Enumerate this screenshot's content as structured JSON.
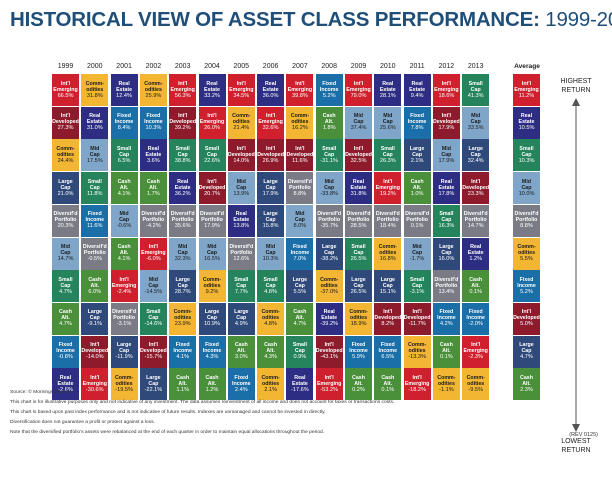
{
  "title": {
    "main": "HISTORICAL VIEW OF ASSET CLASS PERFORMANCE:",
    "years": "1999-2013"
  },
  "chart_data": {
    "type": "table",
    "years": [
      "1999",
      "2000",
      "2001",
      "2002",
      "2003",
      "2004",
      "2005",
      "2006",
      "2007",
      "2008",
      "2009",
      "2010",
      "2011",
      "2012",
      "2013"
    ],
    "average_label": "Average",
    "highest_label": "HIGHEST RETURN",
    "lowest_label": "LOWEST RETURN",
    "colors": {
      "Intl Emerging": "#d0202e",
      "Intl Developed": "#8e1b2c",
      "Real Estate": "#2d2e83",
      "Commodities": "#f2b632",
      "Mid Cap": "#7fa6c9",
      "Small Cap": "#25845b",
      "Large Cap": "#2f4a7a",
      "Diversified Portfolio": "#7b7b86",
      "Fixed Income": "#1a6fa8",
      "Cash Alt.": "#4a8f3a"
    },
    "columns": [
      [
        [
          "Int'l\nEmerging",
          "66.5%"
        ],
        [
          "Int'l\nDeveloped",
          "27.3%"
        ],
        [
          "Comm-\nodities",
          "24.4%"
        ],
        [
          "Large\nCap",
          "21.0%"
        ],
        [
          "Diversif'd\nPortfolio",
          "20.3%"
        ],
        [
          "Mid\nCap",
          "14.7%"
        ],
        [
          "Small\nCap",
          "4.7%"
        ],
        [
          "Cash\nAlt.",
          "4.7%"
        ],
        [
          "Fixed\nIncome",
          "-0.8%"
        ],
        [
          "Real\nEstate",
          "-2.6%"
        ]
      ],
      [
        [
          "Comm-\nodities",
          "31.8%"
        ],
        [
          "Real\nEstate",
          "31.0%"
        ],
        [
          "Mid\nCap",
          "17.5%"
        ],
        [
          "Small\nCap",
          "11.8%"
        ],
        [
          "Fixed\nIncome",
          "11.6%"
        ],
        [
          "Diversif'd\nPortfolio",
          "-0.5%"
        ],
        [
          "Cash\nAlt.",
          "6.0%"
        ],
        [
          "Large\nCap",
          "-9.1%"
        ],
        [
          "Int'l\nDeveloped",
          "-14.0%"
        ],
        [
          "Int'l\nEmerging",
          "-30.6%"
        ]
      ],
      [
        [
          "Real\nEstate",
          "12.4%"
        ],
        [
          "Fixed\nIncome",
          "8.4%"
        ],
        [
          "Small\nCap",
          "6.5%"
        ],
        [
          "Cash\nAlt.",
          "4.1%"
        ],
        [
          "Mid\nCap",
          "-0.6%"
        ],
        [
          "Cash\nAlt.",
          "4.1%"
        ],
        [
          "Int'l\nEmerging",
          "-2.4%"
        ],
        [
          "Diversif'd\nPortfolio",
          "-3.1%"
        ],
        [
          "Large\nCap",
          "-11.9%"
        ],
        [
          "Comm-\nodities",
          "-19.5%"
        ]
      ],
      [
        [
          "Comm-\nodities",
          "25.9%"
        ],
        [
          "Fixed\nIncome",
          "10.3%"
        ],
        [
          "Real\nEstate",
          "3.6%"
        ],
        [
          "Cash\nAlt.",
          "1.7%"
        ],
        [
          "Diversif'd\nPortfolio",
          "-4.2%"
        ],
        [
          "Int'l\nEmerging",
          "-6.0%"
        ],
        [
          "Mid\nCap",
          "-14.5%"
        ],
        [
          "Small\nCap",
          "-14.6%"
        ],
        [
          "Int'l\nDeveloped",
          "-15.7%"
        ],
        [
          "Large\nCap",
          "-22.1%"
        ]
      ],
      [
        [
          "Int'l\nEmerging",
          "56.3%"
        ],
        [
          "Int'l\nDeveloped",
          "39.2%"
        ],
        [
          "Small\nCap",
          "38.8%"
        ],
        [
          "Real\nEstate",
          "36.2%"
        ],
        [
          "Diversif'd\nPortfolio",
          "35.6%"
        ],
        [
          "Mid\nCap",
          "32.3%"
        ],
        [
          "Large\nCap",
          "28.7%"
        ],
        [
          "Comm-\nodities",
          "23.9%"
        ],
        [
          "Fixed\nIncome",
          "4.1%"
        ],
        [
          "Cash\nAlt.",
          "1.1%"
        ]
      ],
      [
        [
          "Real\nEstate",
          "33.2%"
        ],
        [
          "Int'l\nEmerging",
          "26.0%"
        ],
        [
          "Small\nCap",
          "22.6%"
        ],
        [
          "Int'l\nDeveloped",
          "20.7%"
        ],
        [
          "Diversif'd\nPortfolio",
          "17.9%"
        ],
        [
          "Mid\nCap",
          "16.5%"
        ],
        [
          "Comm-\nodities",
          "9.2%"
        ],
        [
          "Large\nCap",
          "10.9%"
        ],
        [
          "Fixed\nIncome",
          "4.3%"
        ],
        [
          "Cash\nAlt.",
          "1.2%"
        ]
      ],
      [
        [
          "Int'l\nEmerging",
          "34.5%"
        ],
        [
          "Comm-\nodities",
          "21.4%"
        ],
        [
          "Int'l\nDeveloped",
          "14.0%"
        ],
        [
          "Mid\nCap",
          "13.9%"
        ],
        [
          "Real\nEstate",
          "13.8%"
        ],
        [
          "Diversif'd\nPortfolio",
          "12.6%"
        ],
        [
          "Small\nCap",
          "7.7%"
        ],
        [
          "Large\nCap",
          "4.9%"
        ],
        [
          "Cash\nAlt.",
          "3.0%"
        ],
        [
          "Fixed\nIncome",
          "2.4%"
        ]
      ],
      [
        [
          "Real\nEstate",
          "36.0%"
        ],
        [
          "Int'l\nEmerging",
          "32.6%"
        ],
        [
          "Int'l\nDeveloped",
          "26.9%"
        ],
        [
          "Large\nCap",
          "17.9%"
        ],
        [
          "Large\nCap",
          "15.8%"
        ],
        [
          "Mid\nCap",
          "10.3%"
        ],
        [
          "Small\nCap",
          "4.8%"
        ],
        [
          "Comm-\nodities",
          "4.8%"
        ],
        [
          "Cash\nAlt.",
          "4.3%"
        ],
        [
          "Comm-\nodities",
          "2.1%"
        ]
      ],
      [
        [
          "Int'l\nEmerging",
          "39.8%"
        ],
        [
          "Comm-\nodities",
          "16.2%"
        ],
        [
          "Int'l\nDeveloped",
          "11.6%"
        ],
        [
          "Diversif'd\nPortfolio",
          "8.8%"
        ],
        [
          "Mid\nCap",
          "8.0%"
        ],
        [
          "Fixed\nIncome",
          "7.0%"
        ],
        [
          "Large\nCap",
          "5.5%"
        ],
        [
          "Cash\nAlt.",
          "4.7%"
        ],
        [
          "Small\nCap",
          "0.9%"
        ],
        [
          "Real\nEstate",
          "-17.6%"
        ]
      ],
      [
        [
          "Fixed\nIncome",
          "5.2%"
        ],
        [
          "Cash\nAlt.",
          "1.8%"
        ],
        [
          "Small\nCap",
          "-31.1%"
        ],
        [
          "Mid\nCap",
          "-33.8%"
        ],
        [
          "Diversif'd\nPortfolio",
          "-35.7%"
        ],
        [
          "Large\nCap",
          "-38.2%"
        ],
        [
          "Comm-\nodities",
          "-37.0%"
        ],
        [
          "Real\nEstate",
          "-39.2%"
        ],
        [
          "Int'l\nDeveloped",
          "-43.1%"
        ],
        [
          "Int'l\nEmerging",
          "-53.2%"
        ]
      ],
      [
        [
          "Int'l\nEmerging",
          "79.0%"
        ],
        [
          "Mid\nCap",
          "37.4%"
        ],
        [
          "Int'l\nDeveloped",
          "32.5%"
        ],
        [
          "Real\nEstate",
          "31.8%"
        ],
        [
          "Diversif'd\nPortfolio",
          "28.5%"
        ],
        [
          "Small\nCap",
          "26.5%"
        ],
        [
          "Large\nCap",
          "26.5%"
        ],
        [
          "Comm-\nodities",
          "18.9%"
        ],
        [
          "Fixed\nIncome",
          "5.9%"
        ],
        [
          "Cash\nAlt.",
          "0.2%"
        ]
      ],
      [
        [
          "Real\nEstate",
          "28.1%"
        ],
        [
          "Mid\nCap",
          "25.6%"
        ],
        [
          "Small\nCap",
          "26.3%"
        ],
        [
          "Int'l\nEmerging",
          "19.2%"
        ],
        [
          "Diversif'd\nPortfolio",
          "18.4%"
        ],
        [
          "Comm-\nodities",
          "16.8%"
        ],
        [
          "Large\nCap",
          "15.1%"
        ],
        [
          "Int'l\nDeveloped",
          "8.2%"
        ],
        [
          "Fixed\nIncome",
          "6.5%"
        ],
        [
          "Cash\nAlt.",
          "0.1%"
        ]
      ],
      [
        [
          "Real\nEstate",
          "9.4%"
        ],
        [
          "Fixed\nIncome",
          "7.8%"
        ],
        [
          "Large\nCap",
          "2.1%"
        ],
        [
          "Cash\nAlt.",
          "1.0%"
        ],
        [
          "Diversif'd\nPortfolio",
          "0.1%"
        ],
        [
          "Mid\nCap",
          "-1.7%"
        ],
        [
          "Small\nCap",
          "-3.1%"
        ],
        [
          "Int'l\nDeveloped",
          "-11.7%"
        ],
        [
          "Comm-\nodities",
          "-13.3%"
        ],
        [
          "Int'l\nEmerging",
          "-18.2%"
        ]
      ],
      [
        [
          "Int'l\nEmerging",
          "18.6%"
        ],
        [
          "Int'l\nDeveloped",
          "17.9%"
        ],
        [
          "Mid\nCap",
          "17.9%"
        ],
        [
          "Real\nEstate",
          "17.8%"
        ],
        [
          "Small\nCap",
          "16.3%"
        ],
        [
          "Large\nCap",
          "16.0%"
        ],
        [
          "Diversif'd\nPortfolio",
          "13.4%"
        ],
        [
          "Fixed\nIncome",
          "4.2%"
        ],
        [
          "Cash\nAlt.",
          "0.1%"
        ],
        [
          "Comm-\nodities",
          "-1.1%"
        ]
      ],
      [
        [
          "Small\nCap",
          "41.3%"
        ],
        [
          "Mid\nCap",
          "33.5%"
        ],
        [
          "Large\nCap",
          "32.4%"
        ],
        [
          "Int'l\nDeveloped",
          "23.3%"
        ],
        [
          "Diversif'd\nPortfolio",
          "14.7%"
        ],
        [
          "Real\nEstate",
          "1.2%"
        ],
        [
          "Cash\nAlt.",
          "0.1%"
        ],
        [
          "Fixed\nIncome",
          "-2.0%"
        ],
        [
          "Int'l\nEmerging",
          "-2.3%"
        ],
        [
          "Comm-\nodities",
          "-9.5%"
        ]
      ]
    ],
    "average": [
      [
        "Int'l\nEmerging",
        "11.2%"
      ],
      [
        "Real\nEstate",
        "10.5%"
      ],
      [
        "Small\nCap",
        "10.3%"
      ],
      [
        "Mid\nCap",
        "10.0%"
      ],
      [
        "Diversif'd\nPortfolio",
        "8.8%"
      ],
      [
        "Comm-\nodities",
        "5.5%"
      ],
      [
        "Fixed\nIncome",
        "5.2%"
      ],
      [
        "Int'l\nDeveloped",
        "5.0%"
      ],
      [
        "Large\nCap",
        "4.7%"
      ],
      [
        "Cash\nAlt.",
        "2.3%"
      ]
    ]
  },
  "footnotes": {
    "source": "Source: © Morningstar 2014",
    "line1": "This chart is for illustrative purposes only and not indicative of any investment. The data assumes reinvestment of all income and does not account for taxes or transactions costs.",
    "line2": "This chart is based upon past index performance and is not indicative of future results. Indexes are unmanaged and cannot be invested in directly.",
    "line3": "Diversification does not guarantee a profit or protect against a loss.",
    "line4": "Note that the diversified portfolio's assets were rebalanced at the end of each quarter in order to maintain equal allocations throughout the period.",
    "rev": "(REV 0125)"
  }
}
